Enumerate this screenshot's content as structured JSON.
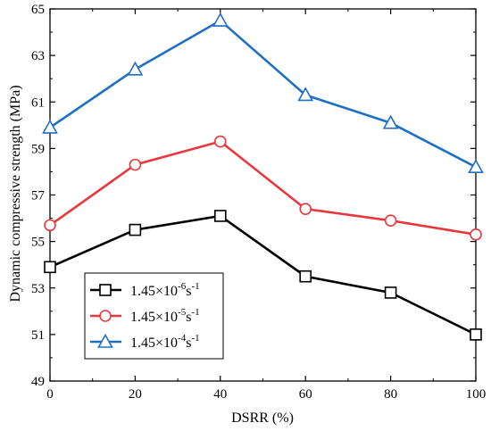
{
  "chart_data": {
    "type": "line",
    "xlabel": "DSRR (%)",
    "ylabel": "Dynamic compressive strength (MPa)",
    "x": [
      0,
      20,
      40,
      60,
      80,
      100
    ],
    "xlim": [
      0,
      100
    ],
    "ylim": [
      49,
      65
    ],
    "xticks": [
      "0",
      "20",
      "40",
      "60",
      "80",
      "100"
    ],
    "yticks": [
      "49",
      "51",
      "53",
      "55",
      "57",
      "59",
      "61",
      "63",
      "65"
    ],
    "legend_position": "bottom-left",
    "grid": false,
    "series": [
      {
        "name": "1.45×10-6s-1",
        "label_base": "1.45×10",
        "label_exp": "-6",
        "label_unit": "s",
        "label_unit_exp": "-1",
        "marker": "square",
        "color": "#000000",
        "values": [
          53.9,
          55.5,
          56.1,
          53.5,
          52.8,
          51.0
        ]
      },
      {
        "name": "1.45×10-5s-1",
        "label_base": "1.45×10",
        "label_exp": "-5",
        "label_unit": "s",
        "label_unit_exp": "-1",
        "marker": "circle",
        "color": "#e8383d",
        "values": [
          55.7,
          58.3,
          59.3,
          56.4,
          55.9,
          55.3
        ]
      },
      {
        "name": "1.45×10-4s-1",
        "label_base": "1.45×10",
        "label_exp": "-4",
        "label_unit": "s",
        "label_unit_exp": "-1",
        "marker": "triangle",
        "color": "#1f6fc4",
        "values": [
          59.9,
          62.4,
          64.5,
          61.3,
          60.1,
          58.2
        ]
      }
    ]
  }
}
